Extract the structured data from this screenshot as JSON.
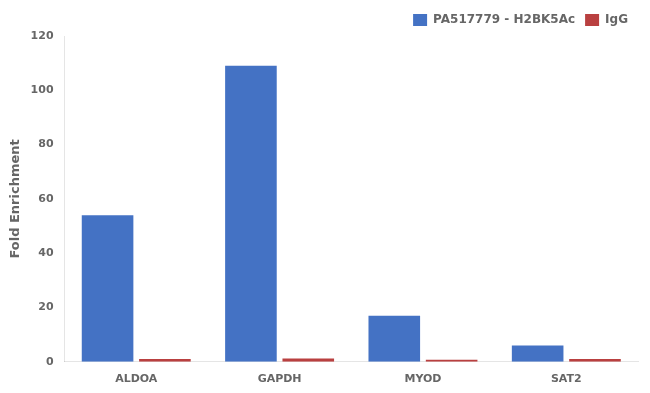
{
  "chart_data": {
    "type": "bar",
    "categories": [
      "ALDOA",
      "GAPDH",
      "MYOD",
      "SAT2"
    ],
    "series": [
      {
        "name": "PA517779 - H2BK5Ac",
        "color": "#4472C4",
        "values": [
          54,
          109,
          17,
          6
        ]
      },
      {
        "name": "IgG",
        "color": "#B94040",
        "values": [
          1,
          1.2,
          0.8,
          1
        ]
      }
    ],
    "ylabel": "Fold Enrichment",
    "ylim": [
      0,
      120
    ],
    "yticks": [
      0,
      20,
      40,
      60,
      80,
      100,
      120
    ],
    "grid": false,
    "legend": "upper right"
  }
}
